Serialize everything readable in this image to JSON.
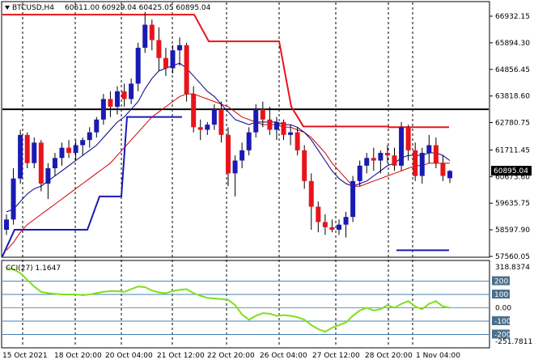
{
  "header": {
    "symbol": "BTCUSD,H4",
    "ohlc": "60611.00 60929.04 60425.05 60895.04"
  },
  "cci_panel": {
    "label": "CCI(27) 1.1647"
  },
  "colors": {
    "up_candle": "#1a1ab4",
    "down_candle": "#e8141b",
    "ma_fast": "#00008b",
    "ma_slow": "#d20000",
    "channel_upper": "#e8141b",
    "channel_lower": "#1a1ab4",
    "horizontal_line": "#000000",
    "cci_line": "#7fe01a",
    "cci_level": "#4682b4",
    "price_tag_bg": "#000000",
    "price_tag_text": "#ffffff"
  },
  "chart_data": {
    "type": "candlestick",
    "title": "BTCUSD,H4",
    "y_ticks": [
      "66932.15",
      "65894.30",
      "64856.45",
      "63818.60",
      "62780.75",
      "61711.45",
      "60673.60",
      "59635.75",
      "58597.90",
      "57560.05"
    ],
    "current_price_label": "60895.04",
    "cci_ticks": [
      "318.8374",
      "200",
      "100",
      "0.00",
      "-100",
      "-200",
      "-251.7811"
    ],
    "x_ticks": [
      "15 Oct 2021",
      "18 Oct 20:00",
      "20 Oct 04:00",
      "21 Oct 12:00",
      "22 Oct 20:00",
      "26 Oct 04:00",
      "27 Oct 12:00",
      "28 Oct 20:00",
      "1 Nov 04:00"
    ],
    "ylim": [
      57560.05,
      67300
    ],
    "cci_ylim": [
      -251.7811,
      318.8374
    ],
    "horizontal_level": 63300,
    "candles": [
      [
        58600,
        59200,
        58400,
        59000
      ],
      [
        59000,
        61000,
        58800,
        60600
      ],
      [
        60600,
        62500,
        60400,
        62300
      ],
      [
        62300,
        62400,
        61000,
        61200
      ],
      [
        61200,
        62200,
        61000,
        62000
      ],
      [
        62000,
        62100,
        60100,
        60400
      ],
      [
        60400,
        61200,
        59800,
        61000
      ],
      [
        61000,
        61600,
        60700,
        61400
      ],
      [
        61400,
        62000,
        61100,
        61800
      ],
      [
        61800,
        62100,
        61400,
        61600
      ],
      [
        61600,
        62100,
        61300,
        61900
      ],
      [
        61900,
        62200,
        61500,
        62100
      ],
      [
        62100,
        62600,
        61800,
        62400
      ],
      [
        62400,
        63000,
        62200,
        62900
      ],
      [
        62900,
        63900,
        62700,
        63700
      ],
      [
        63700,
        64000,
        63000,
        63400
      ],
      [
        63400,
        64200,
        63100,
        64000
      ],
      [
        64000,
        64300,
        63400,
        63700
      ],
      [
        63700,
        64500,
        63500,
        64300
      ],
      [
        64300,
        65900,
        64000,
        65700
      ],
      [
        65700,
        67100,
        65500,
        66600
      ],
      [
        66600,
        66800,
        65600,
        66000
      ],
      [
        66000,
        66500,
        64800,
        65300
      ],
      [
        65300,
        65700,
        64600,
        64900
      ],
      [
        64900,
        65800,
        64700,
        65600
      ],
      [
        65600,
        66100,
        65000,
        65800
      ],
      [
        65800,
        65900,
        63600,
        63900
      ],
      [
        63900,
        64200,
        62400,
        62600
      ],
      [
        62600,
        62900,
        62100,
        62500
      ],
      [
        62500,
        62800,
        62300,
        62700
      ],
      [
        62700,
        63500,
        62500,
        63300
      ],
      [
        63300,
        63600,
        62000,
        62300
      ],
      [
        62300,
        62600,
        60300,
        60800
      ],
      [
        60800,
        61500,
        59900,
        61300
      ],
      [
        61300,
        62000,
        61000,
        61700
      ],
      [
        61700,
        62600,
        61500,
        62400
      ],
      [
        62400,
        63500,
        62200,
        63300
      ],
      [
        63300,
        63600,
        62600,
        62900
      ],
      [
        62900,
        63400,
        62300,
        62500
      ],
      [
        62500,
        63000,
        62100,
        62800
      ],
      [
        62800,
        62900,
        62100,
        62300
      ],
      [
        62300,
        62700,
        61900,
        62400
      ],
      [
        62400,
        62600,
        61500,
        61700
      ],
      [
        61700,
        61900,
        60200,
        60500
      ],
      [
        60500,
        60800,
        58600,
        59500
      ],
      [
        59500,
        59700,
        58500,
        58900
      ],
      [
        58900,
        59200,
        58400,
        58700
      ],
      [
        58700,
        59000,
        58500,
        58600
      ],
      [
        58600,
        59000,
        58400,
        58800
      ],
      [
        58800,
        59300,
        58300,
        59100
      ],
      [
        59100,
        60700,
        58900,
        60500
      ],
      [
        60500,
        61300,
        60300,
        61100
      ],
      [
        61100,
        61600,
        60800,
        61400
      ],
      [
        61400,
        61800,
        60900,
        61300
      ],
      [
        61300,
        61700,
        60800,
        61600
      ],
      [
        61600,
        61900,
        61200,
        61500
      ],
      [
        61500,
        61800,
        60900,
        61100
      ],
      [
        61100,
        62800,
        60900,
        62600
      ],
      [
        62600,
        62700,
        61300,
        61700
      ],
      [
        61700,
        62000,
        60500,
        60700
      ],
      [
        60700,
        61800,
        60400,
        61600
      ],
      [
        61600,
        62300,
        61200,
        61900
      ],
      [
        61900,
        62200,
        61000,
        61200
      ],
      [
        61200,
        61500,
        60500,
        60700
      ],
      [
        60611,
        60929,
        60425,
        60895
      ]
    ],
    "ma_fast": [
      59300,
      59400,
      59700,
      60000,
      60200,
      60300,
      60500,
      60700,
      60900,
      61100,
      61300,
      61500,
      61700,
      61900,
      62200,
      62500,
      62800,
      63000,
      63300,
      63600,
      64100,
      64500,
      64800,
      64900,
      65000,
      65100,
      64900,
      64600,
      64300,
      64000,
      63800,
      63500,
      63200,
      62900,
      62800,
      62700,
      62800,
      62800,
      62800,
      62800,
      62700,
      62700,
      62600,
      62400,
      62100,
      61700,
      61300,
      60900,
      60600,
      60400,
      60300,
      60400,
      60500,
      60700,
      60900,
      61100,
      61200,
      61400,
      61500,
      61500,
      61500,
      61600,
      61600,
      61500,
      61300
    ],
    "ma_slow": [
      57800,
      58100,
      58500,
      58800,
      59000,
      59200,
      59400,
      59600,
      59800,
      60000,
      60200,
      60400,
      60600,
      60800,
      61000,
      61200,
      61500,
      61800,
      62100,
      62400,
      62700,
      63000,
      63200,
      63400,
      63600,
      63800,
      63900,
      63900,
      63800,
      63700,
      63600,
      63500,
      63400,
      63200,
      63000,
      62900,
      62800,
      62700,
      62700,
      62700,
      62600,
      62600,
      62500,
      62400,
      62200,
      61900,
      61600,
      61200,
      60900,
      60600,
      60300,
      60300,
      60400,
      60500,
      60600,
      60700,
      60800,
      60900,
      61000,
      61100,
      61100,
      61200,
      61200,
      61200,
      61200
    ],
    "channel_upper": [
      null,
      null,
      null,
      null,
      null,
      null,
      null,
      null,
      null,
      null,
      null,
      null,
      null,
      null,
      null,
      null,
      null,
      null,
      null,
      null,
      null,
      null,
      null,
      null,
      null,
      null,
      null,
      null,
      null,
      null,
      null,
      null,
      null,
      null,
      null,
      null,
      null,
      null,
      null,
      null,
      null,
      null,
      null,
      null,
      null,
      null,
      null,
      null,
      null,
      null,
      null,
      null,
      null,
      null,
      null,
      null,
      null,
      null,
      null,
      null,
      null,
      null,
      null,
      null,
      null
    ],
    "cci": [
      300,
      290,
      260,
      210,
      160,
      120,
      110,
      105,
      100,
      100,
      100,
      95,
      100,
      110,
      120,
      125,
      125,
      120,
      140,
      160,
      155,
      130,
      115,
      110,
      125,
      135,
      140,
      110,
      90,
      75,
      70,
      65,
      60,
      20,
      -50,
      -90,
      -60,
      -40,
      -45,
      -60,
      -55,
      -60,
      -70,
      -90,
      -130,
      -160,
      -180,
      -150,
      -130,
      -110,
      -60,
      -20,
      0,
      -20,
      -10,
      20,
      0,
      30,
      50,
      10,
      -10,
      30,
      50,
      10,
      0
    ],
    "cci_levels": [
      200,
      100,
      0,
      -100,
      -200
    ]
  }
}
